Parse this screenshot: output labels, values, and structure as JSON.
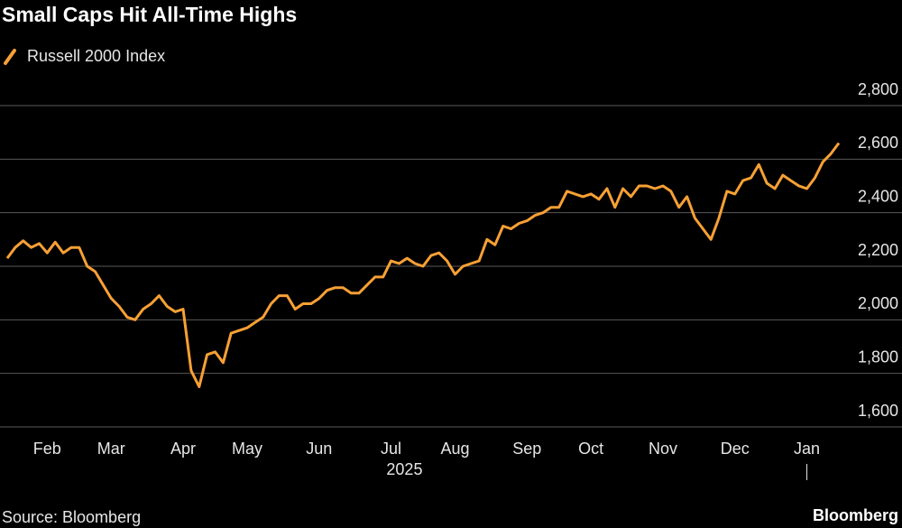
{
  "chart_data": {
    "type": "line",
    "title": "Small Caps Hit All-Time Highs",
    "source": "Source: Bloomberg",
    "brand": "Bloomberg",
    "year_label": "2025",
    "categories": [
      null,
      null,
      null,
      null,
      null,
      "Feb",
      null,
      null,
      null,
      null,
      null,
      null,
      null,
      "Mar",
      null,
      null,
      null,
      null,
      null,
      null,
      null,
      null,
      "Apr",
      null,
      null,
      null,
      null,
      null,
      null,
      null,
      "May",
      null,
      null,
      null,
      null,
      null,
      null,
      null,
      null,
      "Jun",
      null,
      null,
      null,
      null,
      null,
      null,
      null,
      null,
      "Jul",
      null,
      null,
      null,
      null,
      null,
      null,
      null,
      "Aug",
      null,
      null,
      null,
      null,
      null,
      null,
      null,
      null,
      "Sep",
      null,
      null,
      null,
      null,
      null,
      null,
      null,
      "Oct",
      null,
      null,
      null,
      null,
      null,
      null,
      null,
      null,
      "Nov",
      null,
      null,
      null,
      null,
      null,
      null,
      null,
      null,
      "Dec",
      null,
      null,
      null,
      null,
      null,
      null,
      null,
      null,
      "Jan",
      null,
      null,
      null,
      null
    ],
    "series": [
      {
        "name": "Russell 2000 Index",
        "color": "#f7a035",
        "values": [
          2230,
          2270,
          2295,
          2270,
          2285,
          2250,
          2290,
          2250,
          2270,
          2270,
          2200,
          2180,
          2130,
          2080,
          2050,
          2010,
          2000,
          2040,
          2060,
          2090,
          2050,
          2030,
          2040,
          1810,
          1750,
          1870,
          1880,
          1840,
          1950,
          1960,
          1970,
          1990,
          2010,
          2060,
          2090,
          2090,
          2040,
          2060,
          2060,
          2080,
          2110,
          2120,
          2120,
          2100,
          2100,
          2130,
          2160,
          2160,
          2220,
          2210,
          2230,
          2210,
          2200,
          2240,
          2250,
          2220,
          2170,
          2200,
          2210,
          2220,
          2300,
          2280,
          2350,
          2340,
          2360,
          2370,
          2390,
          2400,
          2420,
          2420,
          2480,
          2470,
          2460,
          2470,
          2450,
          2490,
          2420,
          2490,
          2460,
          2500,
          2500,
          2490,
          2500,
          2480,
          2420,
          2460,
          2380,
          2340,
          2300,
          2380,
          2480,
          2470,
          2520,
          2530,
          2580,
          2510,
          2490,
          2540,
          2520,
          2500,
          2490,
          2530,
          2590,
          2620,
          2660
        ]
      }
    ],
    "ylim": [
      1600,
      2800
    ],
    "yticks": [
      {
        "value": 1600,
        "label": "1,600"
      },
      {
        "value": 1800,
        "label": "1,800"
      },
      {
        "value": 2000,
        "label": "2,000"
      },
      {
        "value": 2200,
        "label": "2,200"
      },
      {
        "value": 2400,
        "label": "2,400"
      },
      {
        "value": 2600,
        "label": "2,600"
      },
      {
        "value": 2800,
        "label": "2,800"
      }
    ],
    "grid": true
  }
}
